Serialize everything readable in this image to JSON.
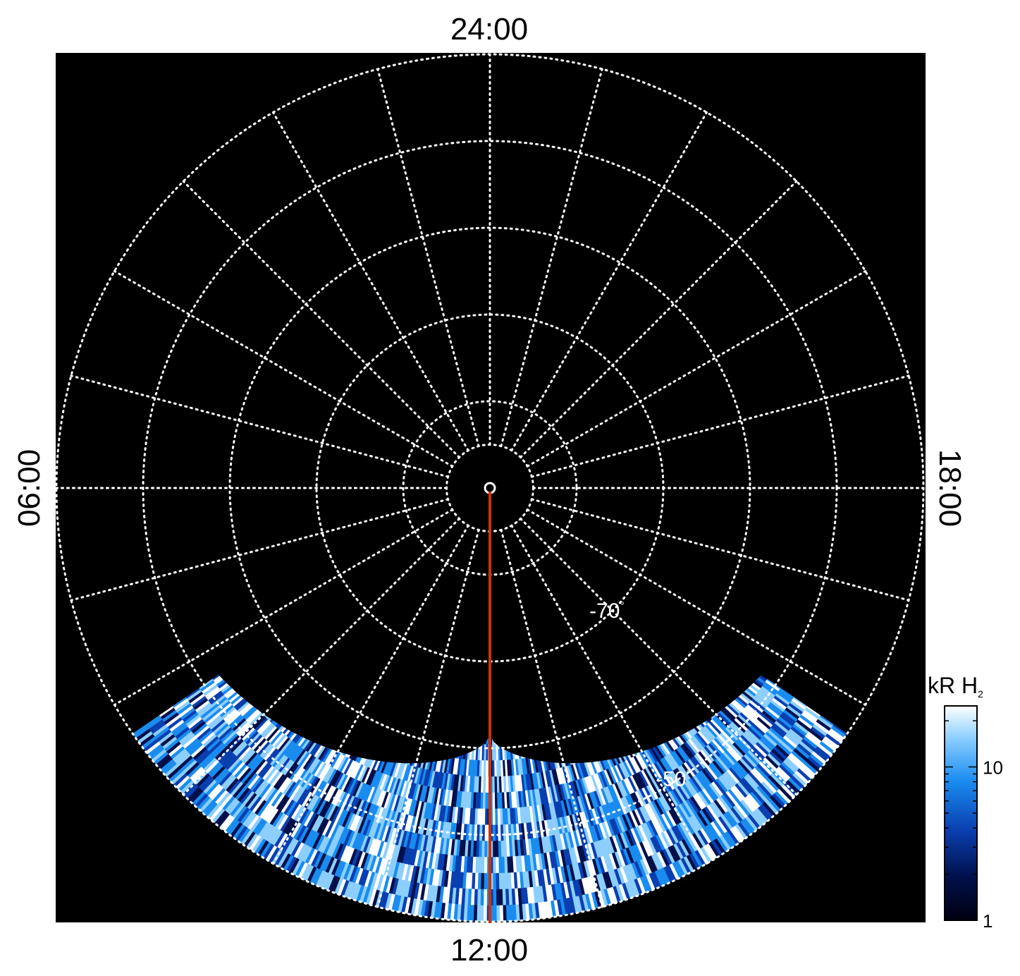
{
  "chart_data": {
    "type": "heatmap",
    "projection": "polar, south pole at centre",
    "title": "",
    "local_time_labels": {
      "top": "24:00",
      "bottom": "12:00",
      "left": "06:00",
      "right": "18:00"
    },
    "latitude_circles_deg": [
      -85,
      -80,
      -70,
      -60,
      -50,
      -40
    ],
    "latitude_labels": [
      {
        "text": "-70",
        "lat": -70,
        "local_time_h": 9.0
      },
      {
        "text": "-50",
        "lat": -50,
        "local_time_h": 9.8
      }
    ],
    "degree_symbol": "°",
    "meridian_step_h": 1,
    "outer_latitude_deg": -40,
    "grid": true,
    "foot_line": {
      "local_time_h": 12,
      "lat_from": -89.6,
      "lat_to": -40,
      "color": "#cc3300"
    },
    "emission": {
      "description_region": "observed band",
      "local_time_range_h": [
        8.3,
        15.7
      ],
      "inner_lat_at_noon": -61.5,
      "inner_lat_at_edges": -52,
      "outer_lat": -40
    },
    "colorbar": {
      "label_main": "kR H",
      "label_sub": "2",
      "scale": "log",
      "min": 1,
      "max": 25,
      "ticks": [
        {
          "value": 1,
          "label": "1"
        },
        {
          "value": 10,
          "label": "10"
        }
      ],
      "colors": [
        "#000010",
        "#00104a",
        "#0a3fb0",
        "#1a8cf0",
        "#8ccfff",
        "#ffffff"
      ]
    }
  },
  "colors": {
    "background_plot": "#000000",
    "grid": "#ffffff",
    "text": "#000000"
  }
}
